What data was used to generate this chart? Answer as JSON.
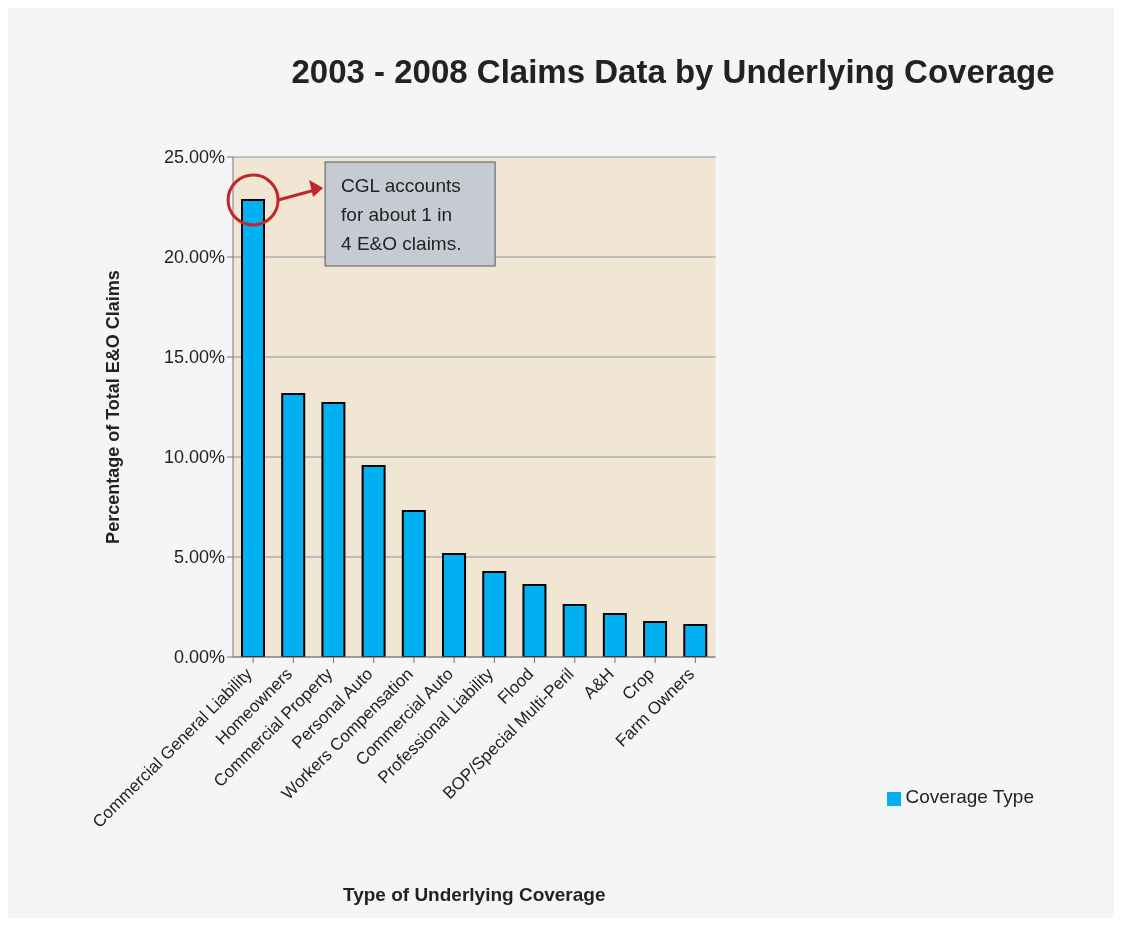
{
  "chart_data": {
    "type": "bar",
    "title": "2003 - 2008 Claims Data by Underlying Coverage",
    "xlabel": "Type of Underlying Coverage",
    "ylabel": "Percentage of Total E&O Claims",
    "categories": [
      "Commercial General Liability",
      "Homeowners",
      "Commercial Property",
      "Personal Auto",
      "Workers Compensation",
      "Commercial Auto",
      "Professional Liability",
      "Flood",
      "BOP/Special Multi-Peril",
      "A&H",
      "Crop",
      "Farm Owners"
    ],
    "series": [
      {
        "name": "Coverage Type",
        "color": "#00b0f0",
        "values": [
          22.85,
          13.15,
          12.7,
          9.55,
          7.3,
          5.15,
          4.25,
          3.6,
          2.6,
          2.15,
          1.75,
          1.6
        ]
      }
    ],
    "ylim": [
      0,
      25
    ],
    "yticks": [
      {
        "value": 0,
        "label": "0.00%"
      },
      {
        "value": 5,
        "label": "5.00%"
      },
      {
        "value": 10,
        "label": "10.00%"
      },
      {
        "value": 15,
        "label": "15.00%"
      },
      {
        "value": 20,
        "label": "20.00%"
      },
      {
        "value": 25,
        "label": "25.00%"
      }
    ],
    "grid": "y",
    "legend": "bottom right",
    "annotations": [
      "CGL accounts for about 1 in 4 E&O claims."
    ]
  }
}
